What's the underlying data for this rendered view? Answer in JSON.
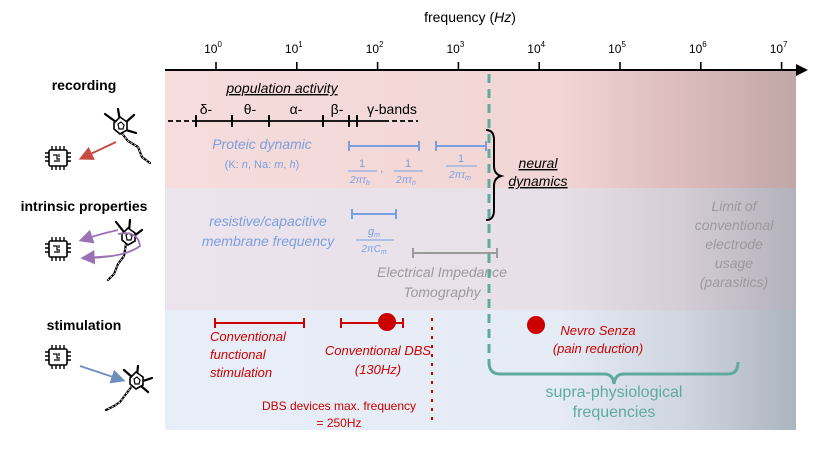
{
  "axis": {
    "label_prefix": "frequency (",
    "label_unit": "Hz",
    "label_suffix": ")",
    "ticks": [
      {
        "base": "10",
        "exp": "0"
      },
      {
        "base": "10",
        "exp": "1"
      },
      {
        "base": "10",
        "exp": "2"
      },
      {
        "base": "10",
        "exp": "3"
      },
      {
        "base": "10",
        "exp": "4"
      },
      {
        "base": "10",
        "exp": "5"
      },
      {
        "base": "10",
        "exp": "6"
      },
      {
        "base": "10",
        "exp": "7"
      }
    ]
  },
  "rows": {
    "recording": "recording",
    "intrinsic": "intrinsic properties",
    "stimulation": "stimulation"
  },
  "recording": {
    "population_activity": "population activity",
    "bands": [
      "δ-",
      "θ-",
      "α-",
      "β-",
      "γ-bands"
    ],
    "proteic_title": "Proteic dynamic",
    "proteic_sub_prefix": "(K: ",
    "proteic_sub_n": "n",
    "proteic_sub_mid": ", Na: ",
    "proteic_sub_m": "m",
    "proteic_sub_sep": ", ",
    "proteic_sub_h": "h",
    "proteic_sub_suffix": ")",
    "frac_num": "1",
    "frac_den_prefix": "2πτ",
    "frac_subs": [
      "h",
      "n",
      "m"
    ],
    "frac_comma": ",",
    "neural_line1": "neural",
    "neural_line2": "dynamics"
  },
  "intrinsic": {
    "membrane_line1": "resistive/capacitive",
    "membrane_line2": "membrane frequency",
    "frac_num_g": "g",
    "frac_num_sub": "m",
    "frac_den_prefix": "2πC",
    "frac_den_sub": "m",
    "eit_line1": "Electrical Impedance",
    "eit_line2": "Tomography",
    "limit_line1": "Limit of",
    "limit_line2": "conventional",
    "limit_line3": "electrode",
    "limit_line4": "usage",
    "limit_line5": "(parasitics)"
  },
  "stimulation": {
    "conv_func_line1": "Conventional",
    "conv_func_line2": "functional",
    "conv_func_line3": "stimulation",
    "dbs_line1": "Conventional DBS",
    "dbs_line2": "(130Hz)",
    "dbs_max_line1": "DBS devices max. frequency",
    "dbs_max_line2": "= 250Hz",
    "nevro_line1": "Nevro Senza",
    "nevro_line2": "(pain reduction)",
    "supra_line1": "supra-physiological",
    "supra_line2": "frequencies"
  },
  "colors": {
    "recording_band": "#f5dcdc",
    "intrinsic_band": "#ebe3ea",
    "stimulation_band": "#e8eef8",
    "blue": "#7a9fde",
    "red": "#cc0000",
    "teal": "#5fab9b",
    "gray": "#9a9a9a"
  }
}
